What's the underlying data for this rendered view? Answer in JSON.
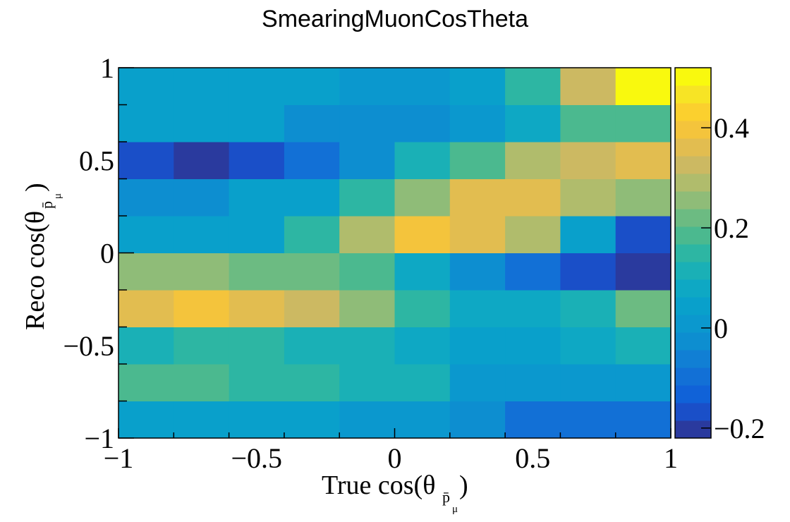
{
  "chart_data": {
    "type": "heatmap",
    "title": "SmearingMuonCosTheta",
    "xlabel": "True cos(θ",
    "xlabel_sub": "p̄",
    "xlabel_subsub": "μ",
    "xlabel_close": ")",
    "ylabel": "Reco cos(θ",
    "ylabel_sub": "p̄",
    "ylabel_subsub": "μ",
    "ylabel_close": ")",
    "x_edges": [
      -1,
      -0.8,
      -0.6,
      -0.4,
      -0.2,
      0,
      0.2,
      0.4,
      0.6,
      0.8,
      1
    ],
    "y_edges": [
      -1,
      -0.8,
      -0.6,
      -0.4,
      -0.2,
      0,
      0.2,
      0.4,
      0.6,
      0.8,
      1
    ],
    "xlim": [
      -1,
      1
    ],
    "ylim": [
      -1,
      1
    ],
    "zlim": [
      -0.22,
      0.52
    ],
    "x_ticks": [
      {
        "value": -1,
        "label": "−1"
      },
      {
        "value": -0.5,
        "label": "−0.5"
      },
      {
        "value": 0,
        "label": "0"
      },
      {
        "value": 0.5,
        "label": "0.5"
      },
      {
        "value": 1,
        "label": "1"
      }
    ],
    "y_ticks": [
      {
        "value": -1,
        "label": "−1"
      },
      {
        "value": -0.5,
        "label": "−0.5"
      },
      {
        "value": 0,
        "label": "0"
      },
      {
        "value": 0.5,
        "label": "0.5"
      },
      {
        "value": 1,
        "label": "1"
      }
    ],
    "z_ticks": [
      {
        "value": -0.2,
        "label": "−0.2"
      },
      {
        "value": 0,
        "label": "0"
      },
      {
        "value": 0.2,
        "label": "0.2"
      },
      {
        "value": 0.4,
        "label": "0.4"
      }
    ],
    "palette": [
      "#2a3a9e",
      "#1a4fc8",
      "#1062d8",
      "#1270d6",
      "#117fd4",
      "#0d8ed0",
      "#0b98ce",
      "#09a0cb",
      "#0ea8c4",
      "#1ab0b6",
      "#2db6a3",
      "#4bb98f",
      "#6cbb82",
      "#8fbc78",
      "#b0bc6c",
      "#ccb962",
      "#e2bd50",
      "#f4c43c",
      "#fbd02e",
      "#f7e425",
      "#f9f90e"
    ],
    "values_rows_bottom_to_top": [
      [
        0.06,
        0.06,
        0.03,
        0.03,
        0.0,
        0.0,
        -0.04,
        -0.08,
        -0.08,
        -0.1
      ],
      [
        0.2,
        0.2,
        0.16,
        0.16,
        0.11,
        0.1,
        0.02,
        0.02,
        0.02,
        0.02
      ],
      [
        0.1,
        0.14,
        0.14,
        0.1,
        0.1,
        0.07,
        0.05,
        0.06,
        0.07,
        0.12
      ],
      [
        0.37,
        0.4,
        0.37,
        0.33,
        0.24,
        0.14,
        0.07,
        0.07,
        0.11,
        0.21
      ],
      [
        0.24,
        0.24,
        0.21,
        0.21,
        0.17,
        0.09,
        -0.03,
        -0.1,
        -0.15,
        -0.2
      ],
      [
        0.04,
        0.04,
        0.06,
        0.14,
        0.29,
        0.4,
        0.36,
        0.28,
        0.06,
        -0.15
      ],
      [
        -0.03,
        -0.01,
        0.03,
        0.06,
        0.14,
        0.26,
        0.36,
        0.36,
        0.28,
        0.24
      ],
      [
        -0.15,
        -0.2,
        -0.15,
        -0.09,
        -0.01,
        0.1,
        0.18,
        0.29,
        0.33,
        0.36
      ],
      [
        0.04,
        0.04,
        0.04,
        -0.02,
        -0.02,
        -0.02,
        0.02,
        0.09,
        0.18,
        0.18
      ],
      [
        0.04,
        0.04,
        0.04,
        0.04,
        0.0,
        0.0,
        0.04,
        0.14,
        0.32,
        0.52
      ]
    ]
  }
}
